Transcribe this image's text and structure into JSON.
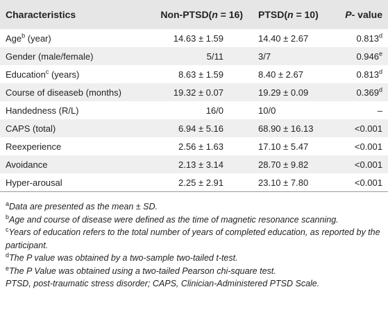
{
  "table": {
    "header": [
      [
        {
          "text": "Characteristics"
        }
      ],
      [
        {
          "text": "Non-PTSD("
        },
        {
          "text": "n",
          "style": "italic"
        },
        {
          "text": " = 16)"
        }
      ],
      [
        {
          "text": "PTSD("
        },
        {
          "text": "n",
          "style": "italic"
        },
        {
          "text": " = 10)"
        }
      ],
      [
        {
          "text": "P-",
          "style": "italic"
        },
        {
          "text": " value"
        }
      ]
    ],
    "rows": [
      [
        [
          {
            "text": "Age"
          },
          {
            "text": "b",
            "style": "sup"
          },
          {
            "text": " (year)"
          }
        ],
        [
          {
            "text": "14.63 ± 1.59"
          }
        ],
        [
          {
            "text": "14.40 ± 2.67"
          }
        ],
        [
          {
            "text": "0.813"
          },
          {
            "text": "d",
            "style": "sup"
          }
        ]
      ],
      [
        [
          {
            "text": "Gender (male/female)"
          }
        ],
        [
          {
            "text": "5/11"
          }
        ],
        [
          {
            "text": "3/7"
          }
        ],
        [
          {
            "text": "0.946"
          },
          {
            "text": "e",
            "style": "sup"
          }
        ]
      ],
      [
        [
          {
            "text": "Education"
          },
          {
            "text": "c",
            "style": "sup"
          },
          {
            "text": " (years)"
          }
        ],
        [
          {
            "text": "8.63 ± 1.59"
          }
        ],
        [
          {
            "text": "8.40 ± 2.67"
          }
        ],
        [
          {
            "text": "0.813"
          },
          {
            "text": "d",
            "style": "sup"
          }
        ]
      ],
      [
        [
          {
            "text": "Course of diseaseb (months)"
          }
        ],
        [
          {
            "text": "19.32 ± 0.07"
          }
        ],
        [
          {
            "text": "19.29 ± 0.09"
          }
        ],
        [
          {
            "text": "0.369"
          },
          {
            "text": "d",
            "style": "sup"
          }
        ]
      ],
      [
        [
          {
            "text": "Handedness (R/L)"
          }
        ],
        [
          {
            "text": "16/0"
          }
        ],
        [
          {
            "text": "10/0"
          }
        ],
        [
          {
            "text": "–"
          }
        ]
      ],
      [
        [
          {
            "text": "CAPS (total)"
          }
        ],
        [
          {
            "text": "6.94 ± 5.16"
          }
        ],
        [
          {
            "text": "68.90 ± 16.13"
          }
        ],
        [
          {
            "text": "<0.001"
          }
        ]
      ],
      [
        [
          {
            "text": "Reexperience"
          }
        ],
        [
          {
            "text": "2.56 ± 1.63"
          }
        ],
        [
          {
            "text": "17.10 ± 5.47"
          }
        ],
        [
          {
            "text": "<0.001"
          }
        ]
      ],
      [
        [
          {
            "text": "Avoidance"
          }
        ],
        [
          {
            "text": "2.13 ± 3.14"
          }
        ],
        [
          {
            "text": "28.70 ± 9.82"
          }
        ],
        [
          {
            "text": "<0.001"
          }
        ]
      ],
      [
        [
          {
            "text": "Hyper-arousal"
          }
        ],
        [
          {
            "text": "2.25 ± 2.91"
          }
        ],
        [
          {
            "text": "23.10 ± 7.80"
          }
        ],
        [
          {
            "text": "<0.001"
          }
        ]
      ]
    ]
  },
  "footnotes": [
    [
      {
        "text": "a",
        "style": "sup"
      },
      {
        "text": "Data are presented as the mean ± SD.",
        "style": "italic"
      }
    ],
    [
      {
        "text": "b",
        "style": "sup"
      },
      {
        "text": "Age and course of disease were defined as the time of magnetic resonance scanning.",
        "style": "italic"
      }
    ],
    [
      {
        "text": "c",
        "style": "sup"
      },
      {
        "text": "Years of education refers to the total number of years of completed education, as reported by the participant.",
        "style": "italic"
      }
    ],
    [
      {
        "text": "d",
        "style": "sup"
      },
      {
        "text": "The P value was obtained by a two-sample two-tailed t-test.",
        "style": "italic"
      }
    ],
    [
      {
        "text": "e",
        "style": "sup"
      },
      {
        "text": "The P Value was obtained using a two-tailed Pearson chi-square test.",
        "style": "italic"
      }
    ],
    [
      {
        "text": "PTSD, post-traumatic stress disorder; CAPS, Clinician-Administered PTSD Scale.",
        "style": "italic"
      }
    ]
  ]
}
